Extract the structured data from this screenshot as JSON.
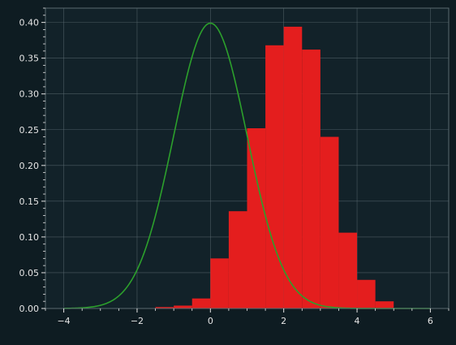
{
  "chart_data": {
    "type": "bar",
    "title": "",
    "xlabel": "",
    "ylabel": "",
    "xlim": [
      -4.5,
      6.5
    ],
    "ylim": [
      0,
      0.42
    ],
    "grid": true,
    "xticks": [
      -4,
      -2,
      0,
      2,
      4,
      6
    ],
    "xtick_labels": [
      "−4",
      "−2",
      "0",
      "2",
      "4",
      "6"
    ],
    "yticks": [
      0.0,
      0.05,
      0.1,
      0.15,
      0.2,
      0.25,
      0.3,
      0.35,
      0.4
    ],
    "ytick_labels": [
      "0.00",
      "0.05",
      "0.10",
      "0.15",
      "0.20",
      "0.25",
      "0.30",
      "0.35",
      "0.40"
    ],
    "histogram": {
      "bin_edges": [
        -1.5,
        -1.0,
        -0.5,
        0.0,
        0.5,
        1.0,
        1.5,
        2.0,
        2.5,
        3.0,
        3.5,
        4.0,
        4.5,
        5.0
      ],
      "values": [
        0.002,
        0.004,
        0.014,
        0.07,
        0.136,
        0.252,
        0.368,
        0.394,
        0.362,
        0.24,
        0.106,
        0.04,
        0.01
      ],
      "color": "#e41e1e"
    },
    "curve": {
      "distribution": "normal",
      "mean": 0,
      "std": 1,
      "x_range": [
        -4,
        6
      ],
      "color": "#2ca02c"
    },
    "colors": {
      "background": "#0e1c22",
      "plot_background": "#122229",
      "grid": "#5a6a70",
      "axis_text": "#e6e6e6"
    }
  }
}
